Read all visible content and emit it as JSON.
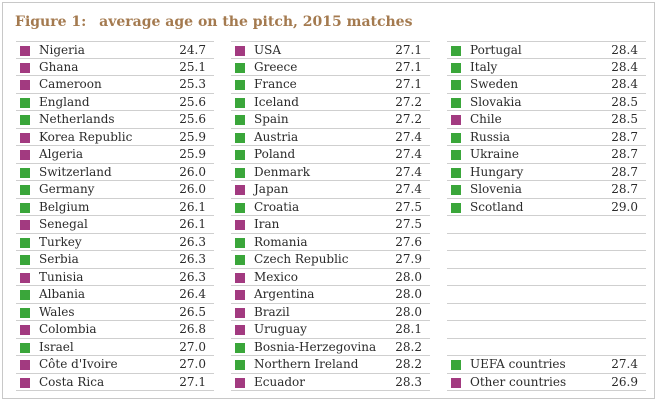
{
  "figure": {
    "label": "Figure 1:",
    "title": "average age on the pitch, 2015 matches"
  },
  "colors": {
    "uefa": "#3aa63a",
    "other": "#a23a80",
    "title": "#a47a4f"
  },
  "columns": [
    {
      "rows": [
        {
          "country": "Nigeria",
          "age": "24.7",
          "group": "other"
        },
        {
          "country": "Ghana",
          "age": "25.1",
          "group": "other"
        },
        {
          "country": "Cameroon",
          "age": "25.3",
          "group": "other"
        },
        {
          "country": "England",
          "age": "25.6",
          "group": "uefa"
        },
        {
          "country": "Netherlands",
          "age": "25.6",
          "group": "uefa"
        },
        {
          "country": "Korea Republic",
          "age": "25.9",
          "group": "other"
        },
        {
          "country": "Algeria",
          "age": "25.9",
          "group": "other"
        },
        {
          "country": "Switzerland",
          "age": "26.0",
          "group": "uefa"
        },
        {
          "country": "Germany",
          "age": "26.0",
          "group": "uefa"
        },
        {
          "country": "Belgium",
          "age": "26.1",
          "group": "uefa"
        },
        {
          "country": "Senegal",
          "age": "26.1",
          "group": "other"
        },
        {
          "country": "Turkey",
          "age": "26.3",
          "group": "uefa"
        },
        {
          "country": "Serbia",
          "age": "26.3",
          "group": "uefa"
        },
        {
          "country": "Tunisia",
          "age": "26.3",
          "group": "other"
        },
        {
          "country": "Albania",
          "age": "26.4",
          "group": "uefa"
        },
        {
          "country": "Wales",
          "age": "26.5",
          "group": "uefa"
        },
        {
          "country": "Colombia",
          "age": "26.8",
          "group": "other"
        },
        {
          "country": "Israel",
          "age": "27.0",
          "group": "uefa"
        },
        {
          "country": "Côte d'Ivoire",
          "age": "27.0",
          "group": "other"
        },
        {
          "country": "Costa Rica",
          "age": "27.1",
          "group": "other"
        }
      ]
    },
    {
      "rows": [
        {
          "country": "USA",
          "age": "27.1",
          "group": "other"
        },
        {
          "country": "Greece",
          "age": "27.1",
          "group": "uefa"
        },
        {
          "country": "France",
          "age": "27.1",
          "group": "uefa"
        },
        {
          "country": "Iceland",
          "age": "27.2",
          "group": "uefa"
        },
        {
          "country": "Spain",
          "age": "27.2",
          "group": "uefa"
        },
        {
          "country": "Austria",
          "age": "27.4",
          "group": "uefa"
        },
        {
          "country": "Poland",
          "age": "27.4",
          "group": "uefa"
        },
        {
          "country": "Denmark",
          "age": "27.4",
          "group": "uefa"
        },
        {
          "country": "Japan",
          "age": "27.4",
          "group": "other"
        },
        {
          "country": "Croatia",
          "age": "27.5",
          "group": "uefa"
        },
        {
          "country": "Iran",
          "age": "27.5",
          "group": "other"
        },
        {
          "country": "Romania",
          "age": "27.6",
          "group": "uefa"
        },
        {
          "country": "Czech Republic",
          "age": "27.9",
          "group": "uefa"
        },
        {
          "country": "Mexico",
          "age": "28.0",
          "group": "other"
        },
        {
          "country": "Argentina",
          "age": "28.0",
          "group": "other"
        },
        {
          "country": "Brazil",
          "age": "28.0",
          "group": "other"
        },
        {
          "country": "Uruguay",
          "age": "28.1",
          "group": "other"
        },
        {
          "country": "Bosnia-Herzegovina",
          "age": "28.2",
          "group": "uefa"
        },
        {
          "country": "Northern Ireland",
          "age": "28.2",
          "group": "uefa"
        },
        {
          "country": "Ecuador",
          "age": "28.3",
          "group": "other"
        }
      ]
    },
    {
      "rows": [
        {
          "country": "Portugal",
          "age": "28.4",
          "group": "uefa"
        },
        {
          "country": "Italy",
          "age": "28.4",
          "group": "uefa"
        },
        {
          "country": "Sweden",
          "age": "28.4",
          "group": "uefa"
        },
        {
          "country": "Slovakia",
          "age": "28.5",
          "group": "uefa"
        },
        {
          "country": "Chile",
          "age": "28.5",
          "group": "other"
        },
        {
          "country": "Russia",
          "age": "28.7",
          "group": "uefa"
        },
        {
          "country": "Ukraine",
          "age": "28.7",
          "group": "uefa"
        },
        {
          "country": "Hungary",
          "age": "28.7",
          "group": "uefa"
        },
        {
          "country": "Slovenia",
          "age": "28.7",
          "group": "uefa"
        },
        {
          "country": "Scotland",
          "age": "29.0",
          "group": "uefa"
        },
        {
          "country": "",
          "age": "",
          "group": ""
        },
        {
          "country": "",
          "age": "",
          "group": ""
        },
        {
          "country": "",
          "age": "",
          "group": ""
        },
        {
          "country": "",
          "age": "",
          "group": ""
        },
        {
          "country": "",
          "age": "",
          "group": ""
        },
        {
          "country": "",
          "age": "",
          "group": ""
        },
        {
          "country": "",
          "age": "",
          "group": ""
        },
        {
          "country": "",
          "age": "",
          "group": ""
        },
        {
          "country": "UEFA countries",
          "age": "27.4",
          "group": "uefa"
        },
        {
          "country": "Other countries",
          "age": "26.9",
          "group": "other"
        }
      ]
    }
  ]
}
